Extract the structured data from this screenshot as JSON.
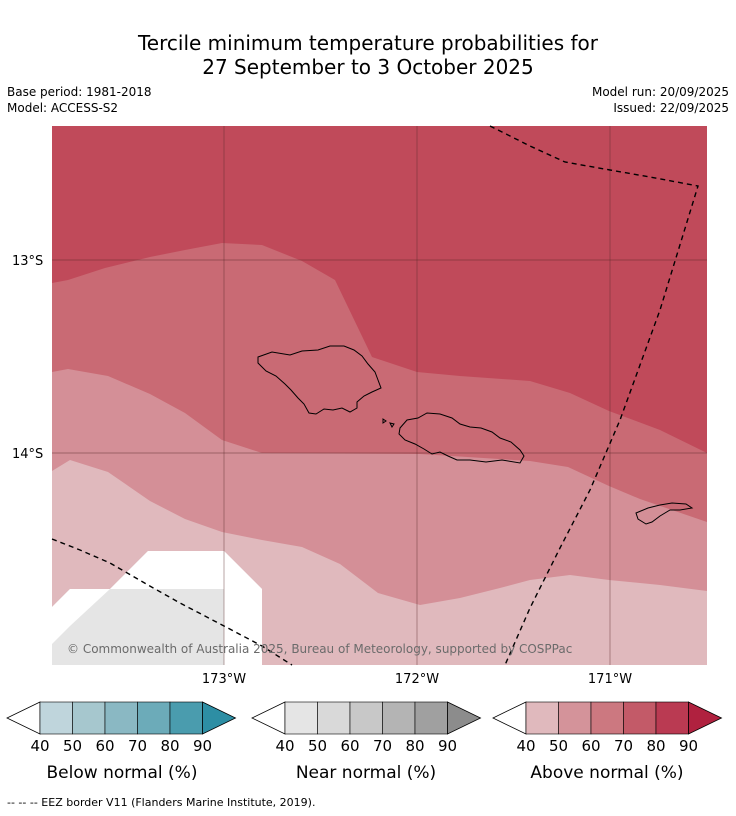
{
  "title": {
    "line1": "Tercile minimum temperature probabilities for",
    "line2": "27 September to 3 October 2025"
  },
  "meta": {
    "base_period": "Base period: 1981-2018",
    "model": "Model: ACCESS-S2",
    "model_run": "Model run: 20/09/2025",
    "issued": "Issued: 22/09/2025"
  },
  "map": {
    "lat_labels": [
      "13°S",
      "14°S"
    ],
    "lon_labels": [
      "173°W",
      "172°W",
      "171°W"
    ],
    "copyright": "© Commonwealth of Australia 2025, Bureau of Meteorology, supported by COSPPac",
    "colors": {
      "above_90": "#c04a5a",
      "above_70": "#c96a74",
      "above_60": "#d48f97",
      "above_50": "#e0b9bd",
      "near_normal": "#e5e5e5",
      "land_outline": "#000000",
      "eez": "#000000"
    }
  },
  "colorbars": [
    {
      "title": "Below normal (%)",
      "ticks": [
        "40",
        "50",
        "60",
        "70",
        "80",
        "90"
      ],
      "colors": [
        "#bfd5dc",
        "#a6c7ce",
        "#8ab8c3",
        "#6cabb9",
        "#4a9cae"
      ],
      "arrow_color": "#2d8ea4"
    },
    {
      "title": "Near normal (%)",
      "ticks": [
        "40",
        "50",
        "60",
        "70",
        "80",
        "90"
      ],
      "colors": [
        "#e5e5e5",
        "#d9d9d9",
        "#c8c8c8",
        "#b4b4b4",
        "#a0a0a0"
      ],
      "arrow_color": "#8c8c8c"
    },
    {
      "title": "Above normal (%)",
      "ticks": [
        "40",
        "50",
        "60",
        "70",
        "80",
        "90"
      ],
      "colors": [
        "#e0b9bd",
        "#d4939a",
        "#cc7880",
        "#c35a68",
        "#ba3a52"
      ],
      "arrow_color": "#b0213f"
    }
  ],
  "footer": "--  --  -- EEZ border V11 (Flanders Marine Institute, 2019)."
}
